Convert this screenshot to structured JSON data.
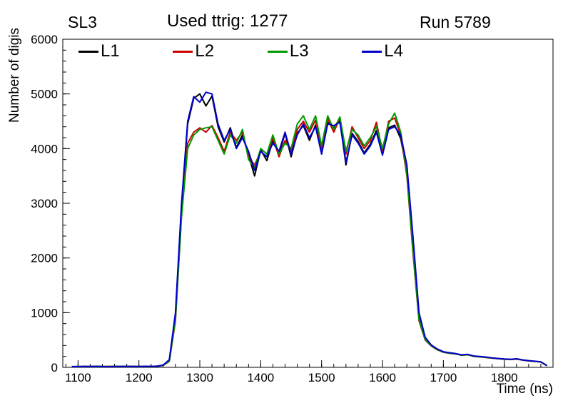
{
  "header": {
    "superlayer": "SL3",
    "ttrig": "Used ttrig: 1277",
    "run": "Run 5789"
  },
  "chart_data": {
    "type": "line",
    "title": "Used ttrig: 1277",
    "xlabel": "Time (ns)",
    "ylabel": "Number of digis",
    "xlim": [
      1075,
      1880
    ],
    "ylim": [
      0,
      6000
    ],
    "xticks": [
      1100,
      1200,
      1300,
      1400,
      1500,
      1600,
      1700,
      1800
    ],
    "yticks": [
      0,
      1000,
      2000,
      3000,
      4000,
      5000,
      6000
    ],
    "x_minor_step": 20,
    "y_minor_step": 200,
    "grid": false,
    "legend_position": "top-inside",
    "x_start": 1090,
    "x_step": 10,
    "series": [
      {
        "name": "L1",
        "color": "#000000",
        "values": [
          15,
          12,
          18,
          14,
          20,
          16,
          12,
          18,
          15,
          20,
          18,
          15,
          20,
          16,
          22,
          40,
          130,
          950,
          2950,
          4450,
          4920,
          5000,
          4780,
          4960,
          4400,
          4120,
          4380,
          4020,
          4250,
          3880,
          3500,
          3980,
          3780,
          4150,
          3900,
          4280,
          3850,
          4280,
          4420,
          4150,
          4430,
          3920,
          4480,
          4380,
          4520,
          3700,
          4280,
          4130,
          3920,
          4080,
          4330,
          3900,
          4380,
          4430,
          4180,
          3600,
          2200,
          900,
          520,
          400,
          330,
          280,
          265,
          250,
          225,
          235,
          205,
          195,
          185,
          170,
          160,
          150,
          145,
          155,
          135,
          120,
          110,
          100,
          30
        ]
      },
      {
        "name": "L2",
        "color": "#cc0000",
        "values": [
          12,
          15,
          14,
          18,
          16,
          14,
          18,
          15,
          20,
          16,
          18,
          14,
          18,
          20,
          18,
          35,
          110,
          850,
          2800,
          4100,
          4300,
          4380,
          4300,
          4420,
          4200,
          3950,
          4300,
          4150,
          4300,
          3850,
          3700,
          3950,
          3850,
          4200,
          3850,
          4150,
          3950,
          4350,
          4500,
          4300,
          4520,
          3980,
          4550,
          4300,
          4560,
          3900,
          4400,
          4200,
          4000,
          4150,
          4480,
          3950,
          4500,
          4560,
          4250,
          3500,
          2100,
          850,
          500,
          390,
          320,
          275,
          255,
          245,
          220,
          230,
          200,
          190,
          180,
          168,
          158,
          148,
          142,
          150,
          132,
          118,
          108,
          98,
          28
        ]
      },
      {
        "name": "L3",
        "color": "#009900",
        "values": [
          14,
          16,
          12,
          18,
          15,
          17,
          13,
          19,
          16,
          18,
          15,
          17,
          19,
          15,
          20,
          38,
          115,
          880,
          2750,
          4000,
          4250,
          4350,
          4380,
          4400,
          4150,
          3900,
          4250,
          4100,
          4350,
          3800,
          3650,
          4000,
          3900,
          4250,
          3900,
          4100,
          4000,
          4450,
          4600,
          4350,
          4600,
          4050,
          4600,
          4350,
          4580,
          3950,
          4350,
          4250,
          4050,
          4200,
          4400,
          4000,
          4450,
          4650,
          4300,
          3550,
          2150,
          870,
          510,
          395,
          325,
          278,
          258,
          248,
          222,
          232,
          202,
          192,
          182,
          170,
          160,
          150,
          144,
          152,
          134,
          119,
          109,
          99,
          29
        ]
      },
      {
        "name": "L4",
        "color": "#0000cc",
        "values": [
          13,
          15,
          17,
          14,
          19,
          15,
          13,
          17,
          16,
          19,
          17,
          14,
          19,
          17,
          21,
          42,
          140,
          1000,
          3000,
          4500,
          4950,
          4850,
          5030,
          5000,
          4450,
          4150,
          4350,
          4000,
          4200,
          3950,
          3600,
          3950,
          3850,
          4100,
          3950,
          4300,
          3900,
          4250,
          4450,
          4200,
          4400,
          3900,
          4450,
          4420,
          4480,
          3750,
          4250,
          4100,
          3900,
          4050,
          4300,
          3880,
          4350,
          4400,
          4250,
          3700,
          2400,
          1000,
          550,
          410,
          335,
          285,
          268,
          252,
          228,
          238,
          208,
          198,
          188,
          172,
          162,
          152,
          146,
          156,
          136,
          122,
          112,
          102,
          32
        ]
      }
    ]
  }
}
